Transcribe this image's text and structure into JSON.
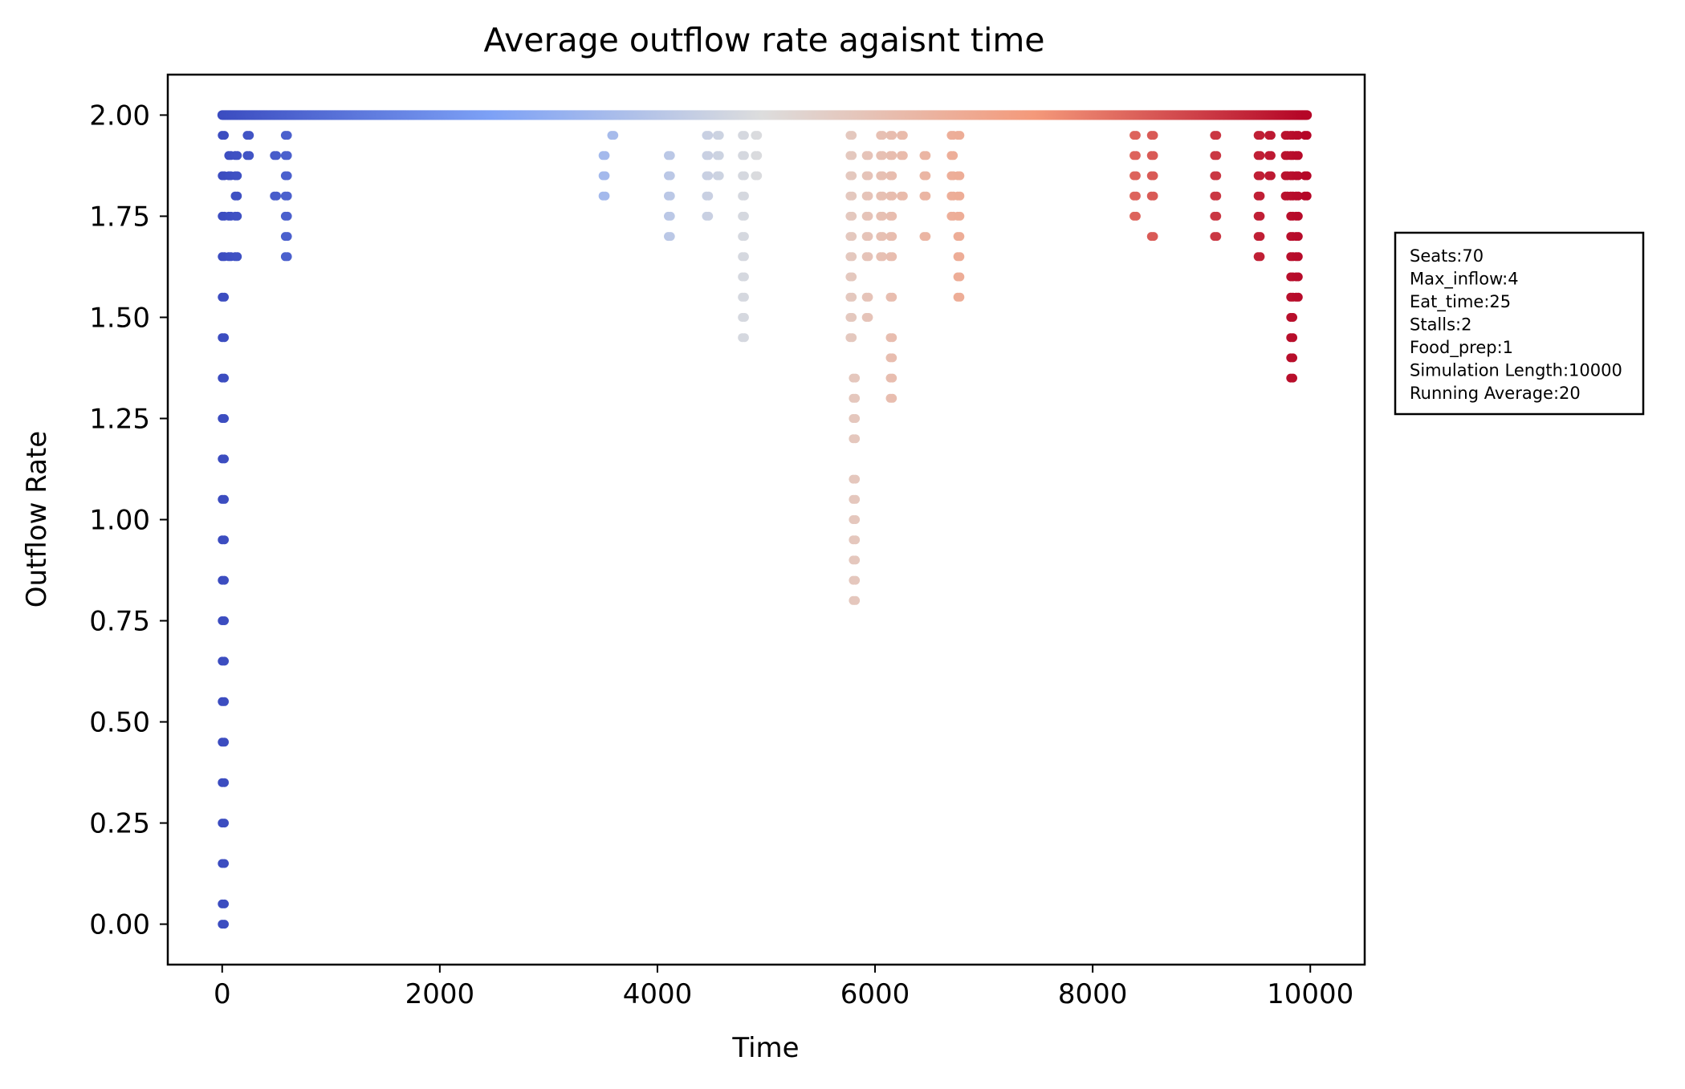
{
  "chart_data": {
    "type": "scatter",
    "title": "Average outflow rate agaisnt time",
    "xlabel": "Time",
    "ylabel": "Outflow Rate",
    "xlim": [
      -500,
      10500
    ],
    "ylim": [
      -0.1,
      2.1
    ],
    "xticks": [
      0,
      2000,
      4000,
      6000,
      8000,
      10000
    ],
    "xtick_labels": [
      "0",
      "2000",
      "4000",
      "6000",
      "8000",
      "10000"
    ],
    "yticks": [
      0.0,
      0.25,
      0.5,
      0.75,
      1.0,
      1.25,
      1.5,
      1.75,
      2.0
    ],
    "ytick_labels": [
      "0.00",
      "0.25",
      "0.50",
      "0.75",
      "1.00",
      "1.25",
      "1.50",
      "1.75",
      "2.00"
    ],
    "grid": false,
    "color_scale": "coolwarm (colored by time, blue to red)",
    "colors": {
      "low": "#3b4cc0",
      "mid": "#dddddd",
      "high": "#b40426"
    },
    "baseline": {
      "x_start": 0,
      "x_end": 9970,
      "y": 2.0
    },
    "clusters": [
      {
        "x": 0,
        "values": [
          0.0,
          0.05,
          0.15,
          0.25,
          0.35,
          0.45,
          0.55,
          0.65,
          0.75,
          0.85,
          0.95,
          1.05,
          1.15,
          1.25,
          1.35,
          1.45,
          1.55,
          1.65,
          1.75,
          1.85,
          1.95
        ]
      },
      {
        "x": 60,
        "values": [
          1.65,
          1.75,
          1.85,
          1.9
        ]
      },
      {
        "x": 120,
        "values": [
          1.65,
          1.75,
          1.8,
          1.85,
          1.9
        ]
      },
      {
        "x": 230,
        "values": [
          1.9,
          1.95
        ]
      },
      {
        "x": 480,
        "values": [
          1.8,
          1.9
        ]
      },
      {
        "x": 580,
        "values": [
          1.65,
          1.7,
          1.75,
          1.8,
          1.85,
          1.9,
          1.95
        ]
      },
      {
        "x": 3500,
        "values": [
          1.8,
          1.85,
          1.9
        ]
      },
      {
        "x": 3580,
        "values": [
          1.95
        ]
      },
      {
        "x": 4100,
        "values": [
          1.7,
          1.75,
          1.8,
          1.85,
          1.9
        ]
      },
      {
        "x": 4450,
        "values": [
          1.75,
          1.8,
          1.85,
          1.9,
          1.95
        ]
      },
      {
        "x": 4550,
        "values": [
          1.85,
          1.9,
          1.95
        ]
      },
      {
        "x": 4780,
        "values": [
          1.45,
          1.5,
          1.55,
          1.6,
          1.65,
          1.7,
          1.75,
          1.8,
          1.85,
          1.9,
          1.95
        ]
      },
      {
        "x": 4900,
        "values": [
          1.85,
          1.9,
          1.95
        ]
      },
      {
        "x": 5770,
        "values": [
          1.45,
          1.5,
          1.55,
          1.6,
          1.65,
          1.7,
          1.75,
          1.8,
          1.85,
          1.9,
          1.95
        ]
      },
      {
        "x": 5800,
        "values": [
          0.8,
          0.85,
          0.9,
          0.95,
          1.0,
          1.05,
          1.1,
          1.2,
          1.25,
          1.3,
          1.35
        ]
      },
      {
        "x": 5920,
        "values": [
          1.5,
          1.55,
          1.65,
          1.7,
          1.75,
          1.8,
          1.85,
          1.9
        ]
      },
      {
        "x": 6050,
        "values": [
          1.65,
          1.7,
          1.75,
          1.8,
          1.85,
          1.9,
          1.95
        ]
      },
      {
        "x": 6140,
        "values": [
          1.3,
          1.35,
          1.4,
          1.45,
          1.55,
          1.65,
          1.7,
          1.75,
          1.8,
          1.85,
          1.9,
          1.95
        ]
      },
      {
        "x": 6240,
        "values": [
          1.8,
          1.9,
          1.95
        ]
      },
      {
        "x": 6450,
        "values": [
          1.7,
          1.8,
          1.85,
          1.9
        ]
      },
      {
        "x": 6700,
        "values": [
          1.75,
          1.8,
          1.85,
          1.9,
          1.95
        ]
      },
      {
        "x": 6760,
        "values": [
          1.55,
          1.6,
          1.65,
          1.7,
          1.75,
          1.8,
          1.85,
          1.95
        ]
      },
      {
        "x": 8380,
        "values": [
          1.75,
          1.8,
          1.85,
          1.9,
          1.95
        ]
      },
      {
        "x": 8540,
        "values": [
          1.7,
          1.8,
          1.85,
          1.9,
          1.95
        ]
      },
      {
        "x": 9120,
        "values": [
          1.7,
          1.75,
          1.8,
          1.85,
          1.9,
          1.95
        ]
      },
      {
        "x": 9520,
        "values": [
          1.65,
          1.7,
          1.75,
          1.8,
          1.85,
          1.9,
          1.95
        ]
      },
      {
        "x": 9620,
        "values": [
          1.85,
          1.9,
          1.95
        ]
      },
      {
        "x": 9770,
        "values": [
          1.8,
          1.85,
          1.9,
          1.95
        ]
      },
      {
        "x": 9820,
        "values": [
          1.35,
          1.4,
          1.45,
          1.5,
          1.55,
          1.6,
          1.65,
          1.7,
          1.75,
          1.8,
          1.85,
          1.9,
          1.95
        ]
      },
      {
        "x": 9870,
        "values": [
          1.55,
          1.6,
          1.65,
          1.7,
          1.75,
          1.8,
          1.85,
          1.9,
          1.95
        ]
      },
      {
        "x": 9950,
        "values": [
          1.8,
          1.85,
          1.95
        ]
      }
    ]
  },
  "info_box": {
    "lines": [
      "Seats:70",
      "Max_inflow:4",
      "Eat_time:25",
      "Stalls:2",
      "Food_prep:1",
      "Simulation Length:10000",
      "Running Average:20"
    ]
  }
}
